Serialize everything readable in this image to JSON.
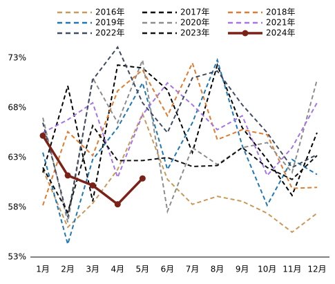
{
  "chart_data": {
    "type": "line",
    "categories": [
      "1月",
      "2月",
      "3月",
      "4月",
      "5月",
      "6月",
      "7月",
      "8月",
      "9月",
      "10月",
      "11月",
      "12月"
    ],
    "series": [
      {
        "name": "2016年",
        "color": "#c9995a",
        "dashed": true,
        "values": [
          61.8,
          56.0,
          58.4,
          61.8,
          67.4,
          60.8,
          58.3,
          59.1,
          58.6,
          57.4,
          55.5,
          57.4
        ]
      },
      {
        "name": "2017年",
        "color": "#000000",
        "dashed": true,
        "values": [
          61.5,
          70.2,
          58.6,
          72.3,
          72.0,
          69.8,
          63.5,
          72.3,
          66.0,
          62.8,
          59.2,
          65.5
        ]
      },
      {
        "name": "2018年",
        "color": "#e07b30",
        "dashed": true,
        "values": [
          58.2,
          65.6,
          63.2,
          69.7,
          71.8,
          67.2,
          72.5,
          64.8,
          65.8,
          65.3,
          59.9,
          60.0
        ]
      },
      {
        "name": "2019年",
        "color": "#1f77b4",
        "dashed": true,
        "values": [
          63.5,
          54.3,
          62.8,
          66.0,
          70.5,
          61.8,
          66.5,
          72.8,
          64.2,
          58.2,
          62.8,
          61.3
        ]
      },
      {
        "name": "2020年",
        "color": "#8c8c8c",
        "dashed": true,
        "values": [
          67.0,
          56.5,
          71.0,
          66.5,
          72.8,
          57.6,
          64.0,
          62.3,
          64.0,
          64.5,
          61.5,
          70.8
        ]
      },
      {
        "name": "2021年",
        "color": "#a474e8",
        "dashed": true,
        "values": [
          65.5,
          66.8,
          68.5,
          61.0,
          67.3,
          70.5,
          68.3,
          65.8,
          67.2,
          61.2,
          64.0,
          68.5
        ]
      },
      {
        "name": "2022年",
        "color": "#404a60",
        "dashed": true,
        "values": [
          66.5,
          57.0,
          70.8,
          74.1,
          68.5,
          65.5,
          71.0,
          71.7,
          68.3,
          65.5,
          62.0,
          63.3
        ]
      },
      {
        "name": "2023年",
        "color": "#111111",
        "dashed": true,
        "values": [
          62.0,
          57.5,
          66.2,
          62.7,
          62.7,
          63.0,
          62.1,
          62.2,
          64.0,
          62.0,
          60.8,
          63.2
        ]
      },
      {
        "name": "2024年",
        "color": "#7a2218",
        "dashed": false,
        "values": [
          65.2,
          61.2,
          60.2,
          58.3,
          60.9,
          null,
          null,
          null,
          null,
          null,
          null,
          null
        ]
      }
    ],
    "ylim": [
      53,
      74.5
    ],
    "yticks": [
      {
        "value": 53,
        "label": "53%"
      },
      {
        "value": 58,
        "label": "58%"
      },
      {
        "value": 63,
        "label": "63%"
      },
      {
        "value": 68,
        "label": "68%"
      },
      {
        "value": 73,
        "label": "73%"
      }
    ],
    "grid": false
  }
}
